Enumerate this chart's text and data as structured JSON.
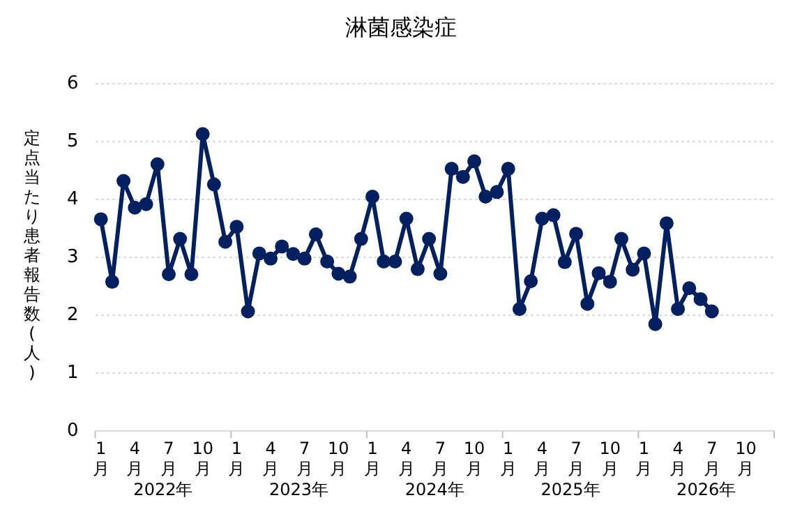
{
  "chart_data": {
    "type": "line",
    "title": "淋菌感染症",
    "ylabel": "定点当たり患者報告数(人)",
    "categories": [
      "1月",
      null,
      null,
      "4月",
      null,
      null,
      "7月",
      null,
      null,
      "10月",
      null,
      null,
      "1月",
      null,
      null,
      "4月",
      null,
      null,
      "7月",
      null,
      null,
      "10月",
      null,
      null,
      "1月",
      null,
      null,
      "4月",
      null,
      null,
      "7月",
      null,
      null,
      "10月",
      null,
      null,
      "1月",
      null,
      null,
      "4月",
      null,
      null,
      "7月",
      null,
      null,
      "10月",
      null,
      null,
      "1月",
      null,
      null,
      "4月",
      null,
      null,
      "7月",
      null,
      null,
      "10月",
      null,
      null
    ],
    "series": [
      {
        "color": "#002060",
        "values": [
          3.66,
          2.58,
          4.32,
          3.86,
          3.92,
          4.61,
          2.71,
          3.32,
          2.71,
          5.13,
          4.26,
          3.27,
          3.53,
          2.07,
          3.07,
          2.98,
          3.19,
          3.06,
          2.98,
          3.4,
          2.93,
          2.72,
          2.67,
          3.32,
          4.05,
          2.93,
          2.93,
          3.67,
          2.8,
          3.32,
          2.72,
          4.53,
          4.39,
          4.66,
          4.05,
          4.13,
          4.53,
          2.11,
          2.59,
          3.67,
          3.73,
          2.92,
          3.41,
          2.2,
          2.73,
          2.58,
          3.32,
          2.79,
          3.07,
          1.85,
          3.59,
          2.11,
          2.47,
          2.28,
          2.07,
          null,
          null,
          null,
          null,
          null
        ]
      }
    ],
    "ylim": [
      0,
      6
    ],
    "yticks": [
      0,
      1,
      2,
      3,
      4,
      5,
      6
    ],
    "grid": "y",
    "legend": false,
    "marker": "circle",
    "line_style": "solid",
    "annotations": [
      "2022年",
      "2023年",
      "2024年",
      "2025年",
      "2026年"
    ]
  }
}
